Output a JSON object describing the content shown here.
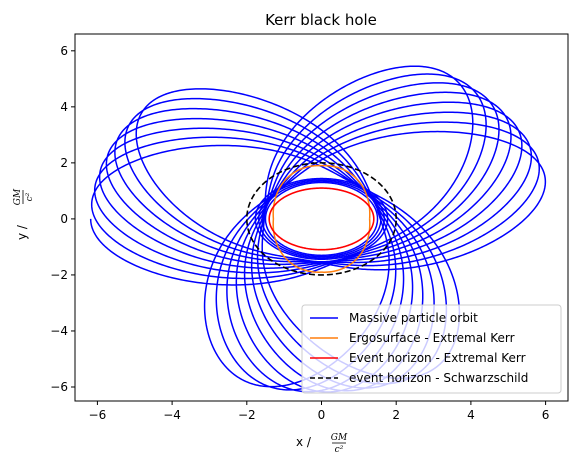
{
  "chart_data": {
    "type": "line",
    "title": "Kerr black hole",
    "xlabel": {
      "text": "x  /",
      "numerator": "GM",
      "denominator": "c²"
    },
    "ylabel": {
      "text": "y  /",
      "numerator": "GM",
      "denominator": "c²"
    },
    "xlim": [
      -6.6,
      6.6
    ],
    "ylim": [
      -6.5,
      6.6
    ],
    "xticks": [
      -6,
      -4,
      -2,
      0,
      2,
      4,
      6
    ],
    "yticks": [
      -6,
      -4,
      -2,
      0,
      2,
      4,
      6
    ],
    "xtick_labels": [
      "−6",
      "−4",
      "−2",
      "0",
      "2",
      "4",
      "6"
    ],
    "ytick_labels": [
      "−6",
      "−4",
      "−2",
      "0",
      "2",
      "4",
      "6"
    ],
    "grid": false,
    "legend_position": "lower-right",
    "series": [
      {
        "name": "Massive particle orbit",
        "color": "#0000ff",
        "style": "solid",
        "kind": "precessing-orbit",
        "start": [
          -6,
          0
        ],
        "r_max": 6.0,
        "r_min": 1.35,
        "lobes": 3
      },
      {
        "name": "Ergosurface - Extremal Kerr",
        "color": "#ff7f0e",
        "style": "solid",
        "kind": "ergosurface",
        "semi_x": 1.4,
        "semi_y": 2.0
      },
      {
        "name": "Event horizon - Extremal Kerr",
        "color": "#ff0000",
        "style": "solid",
        "kind": "ellipse",
        "semi_x": 1.4,
        "semi_y": 1.1
      },
      {
        "name": "event horizon - Schwarzschild",
        "color": "#000000",
        "style": "dashed",
        "kind": "circle",
        "radius": 2.0
      }
    ]
  }
}
